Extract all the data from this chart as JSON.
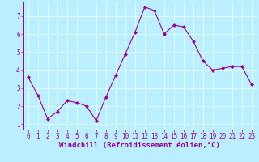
{
  "x": [
    0,
    1,
    2,
    3,
    4,
    5,
    6,
    7,
    8,
    9,
    10,
    11,
    12,
    13,
    14,
    15,
    16,
    17,
    18,
    19,
    20,
    21,
    22,
    23
  ],
  "y": [
    3.6,
    2.6,
    1.3,
    1.7,
    2.3,
    2.2,
    2.0,
    1.2,
    2.5,
    3.7,
    4.9,
    6.1,
    7.5,
    7.3,
    6.0,
    6.5,
    6.4,
    5.6,
    4.5,
    4.0,
    4.1,
    4.2,
    4.2,
    3.2
  ],
  "color": "#990099",
  "bg_color": "#bbeeff",
  "grid_color": "#ddffff",
  "xlabel": "Windchill (Refroidissement éolien,°C)",
  "xlabel_color": "#990099",
  "xlabel_fontsize": 6.5,
  "ylim": [
    0.7,
    7.8
  ],
  "xlim": [
    -0.5,
    23.5
  ],
  "yticks": [
    1,
    2,
    3,
    4,
    5,
    6,
    7
  ],
  "xticks": [
    0,
    1,
    2,
    3,
    4,
    5,
    6,
    7,
    8,
    9,
    10,
    11,
    12,
    13,
    14,
    15,
    16,
    17,
    18,
    19,
    20,
    21,
    22,
    23
  ],
  "tick_fontsize": 5.5,
  "marker": "D",
  "marker_size": 2.0,
  "line_width": 0.8
}
